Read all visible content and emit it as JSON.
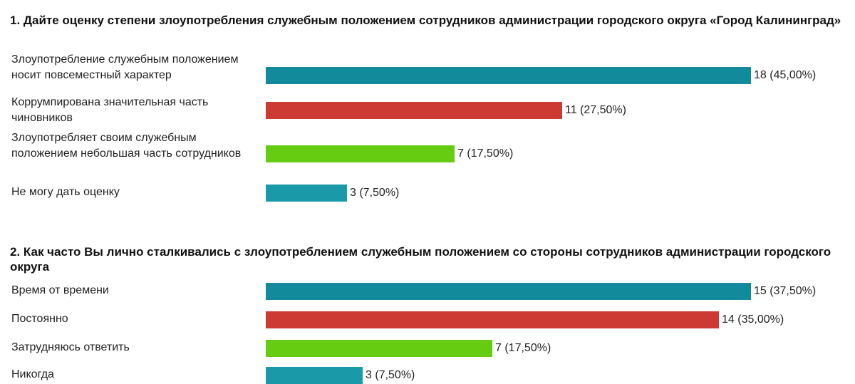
{
  "colors": {
    "teal": "#138a9c",
    "red": "#cc3a33",
    "green": "#66cc11",
    "smallteal": "#1a9aa8"
  },
  "chart_data": [
    {
      "type": "bar",
      "orientation": "horizontal",
      "title": "1. Дайте оценку степени злоупотребления служебным положением сотрудников администрации городского округа «Город Калининград»",
      "categories": [
        "Злоупотребление служебным положением носит повсеместный характер",
        "Коррумпирована значительная часть чиновников",
        "Злоупотребляет своим служебным положением небольшая часть сотрудников",
        "Не могу дать оценку"
      ],
      "values": [
        18,
        11,
        7,
        3
      ],
      "percents": [
        45.0,
        27.5,
        17.5,
        7.5
      ],
      "value_labels": [
        "18 (45,00%)",
        "11 (27,50%)",
        "7 (17,50%)",
        "3 (7,50%)"
      ],
      "colors": [
        "#138a9c",
        "#cc3a33",
        "#66cc11",
        "#1a9aa8"
      ],
      "xlim": [
        0,
        18
      ]
    },
    {
      "type": "bar",
      "orientation": "horizontal",
      "title": "2. Как часто Вы лично сталкивались с злоупотреблением служебным положением со стороны сотрудников администрации городского округа",
      "categories": [
        "Время от времени",
        "Постоянно",
        "Затрудняюсь ответить",
        "Никогда"
      ],
      "values": [
        15,
        14,
        7,
        3
      ],
      "percents": [
        37.5,
        35.0,
        17.5,
        7.5
      ],
      "value_labels": [
        "15 (37,50%)",
        "14 (35,00%)",
        "7 (17,50%)",
        "3 (7,50%)"
      ],
      "colors": [
        "#138a9c",
        "#cc3a33",
        "#66cc11",
        "#1a9aa8"
      ],
      "xlim": [
        0,
        15
      ]
    }
  ]
}
